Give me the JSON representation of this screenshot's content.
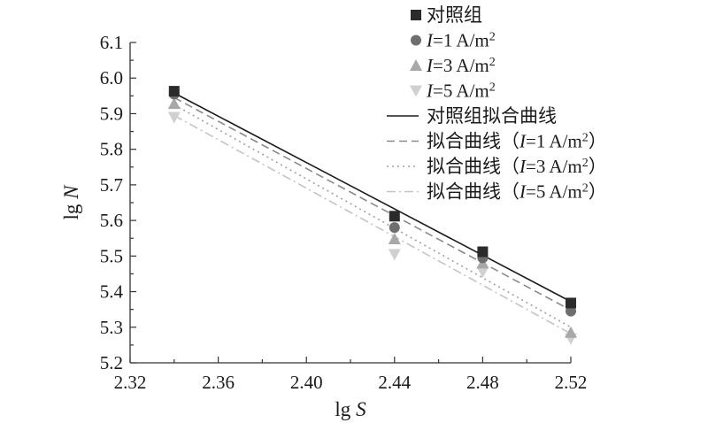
{
  "chart_data": {
    "type": "scatter",
    "xlabel": "lg S",
    "ylabel": "lg N",
    "xlim": [
      2.32,
      2.52
    ],
    "ylim": [
      5.2,
      6.1
    ],
    "xticks": [
      2.32,
      2.36,
      2.4,
      2.44,
      2.48,
      2.52
    ],
    "xtick_labels": [
      "2.32",
      "2.36",
      "2.40",
      "2.44",
      "2.48",
      "2.52"
    ],
    "yticks": [
      5.2,
      5.3,
      5.4,
      5.5,
      5.6,
      5.7,
      5.8,
      5.9,
      6.0,
      6.1
    ],
    "ytick_labels": [
      "5.2",
      "5.3",
      "5.4",
      "5.5",
      "5.6",
      "5.7",
      "5.8",
      "5.9",
      "6.0",
      "6.1"
    ],
    "grid": false,
    "legend_position": "top-right",
    "series": [
      {
        "name": "对照组",
        "marker": "square",
        "color": "#2b2b2b",
        "x": [
          2.34,
          2.44,
          2.48,
          2.52
        ],
        "y": [
          5.963,
          5.612,
          5.512,
          5.368
        ]
      },
      {
        "name": "I=1 A/m²",
        "marker": "circle",
        "color": "#6e6e6e",
        "x": [
          2.34,
          2.44,
          2.48,
          2.52
        ],
        "y": [
          5.955,
          5.58,
          5.495,
          5.345
        ]
      },
      {
        "name": "I=3 A/m²",
        "marker": "triangle-up",
        "color": "#a8a8a8",
        "x": [
          2.34,
          2.44,
          2.48,
          2.52
        ],
        "y": [
          5.928,
          5.548,
          5.48,
          5.285
        ]
      },
      {
        "name": "I=5 A/m²",
        "marker": "triangle-down",
        "color": "#d0d0d0",
        "x": [
          2.34,
          2.44,
          2.48,
          2.52
        ],
        "y": [
          5.89,
          5.505,
          5.455,
          5.268
        ]
      }
    ],
    "fit_lines": [
      {
        "name": "对照组拟合曲线",
        "style": "solid",
        "color": "#1a1a1a",
        "x": [
          2.34,
          2.52
        ],
        "y": [
          5.958,
          5.372
        ]
      },
      {
        "name": "拟合曲线（I=1 A/m²）",
        "style": "dashed",
        "color": "#8a8a8a",
        "x": [
          2.34,
          2.52
        ],
        "y": [
          5.945,
          5.348
        ]
      },
      {
        "name": "拟合曲线（I=3 A/m²）",
        "style": "dotted",
        "color": "#a0a0a0",
        "x": [
          2.34,
          2.52
        ],
        "y": [
          5.925,
          5.3
        ]
      },
      {
        "name": "拟合曲线（I=5 A/m²）",
        "style": "dashdot",
        "color": "#c4c4c4",
        "x": [
          2.34,
          2.52
        ],
        "y": [
          5.895,
          5.282
        ]
      }
    ],
    "legend": [
      {
        "kind": "marker",
        "marker": "square",
        "color": "#2b2b2b",
        "prefix": "对照组",
        "label": "对照组"
      },
      {
        "kind": "marker",
        "marker": "circle",
        "color": "#6e6e6e",
        "prefix": "I",
        "label": "=1 A/m",
        "sup": "2"
      },
      {
        "kind": "marker",
        "marker": "triangle-up",
        "color": "#a8a8a8",
        "prefix": "I",
        "label": "=3 A/m",
        "sup": "2"
      },
      {
        "kind": "marker",
        "marker": "triangle-down",
        "color": "#d0d0d0",
        "prefix": "I",
        "label": "=5 A/m",
        "sup": "2"
      },
      {
        "kind": "line",
        "style": "solid",
        "color": "#1a1a1a",
        "prefix": "对照组拟合曲线",
        "label": "对照组拟合曲线"
      },
      {
        "kind": "line",
        "style": "dashed",
        "color": "#8a8a8a",
        "prefix": "拟合曲线（",
        "italic": "I",
        "label": "=1 A/m",
        "sup": "2",
        "suffix": "）"
      },
      {
        "kind": "line",
        "style": "dotted",
        "color": "#a0a0a0",
        "prefix": "拟合曲线（",
        "italic": "I",
        "label": "=3 A/m",
        "sup": "2",
        "suffix": "）"
      },
      {
        "kind": "line",
        "style": "dashdot",
        "color": "#c4c4c4",
        "prefix": "拟合曲线（",
        "italic": "I",
        "label": "=5 A/m",
        "sup": "2",
        "suffix": "）"
      }
    ]
  }
}
